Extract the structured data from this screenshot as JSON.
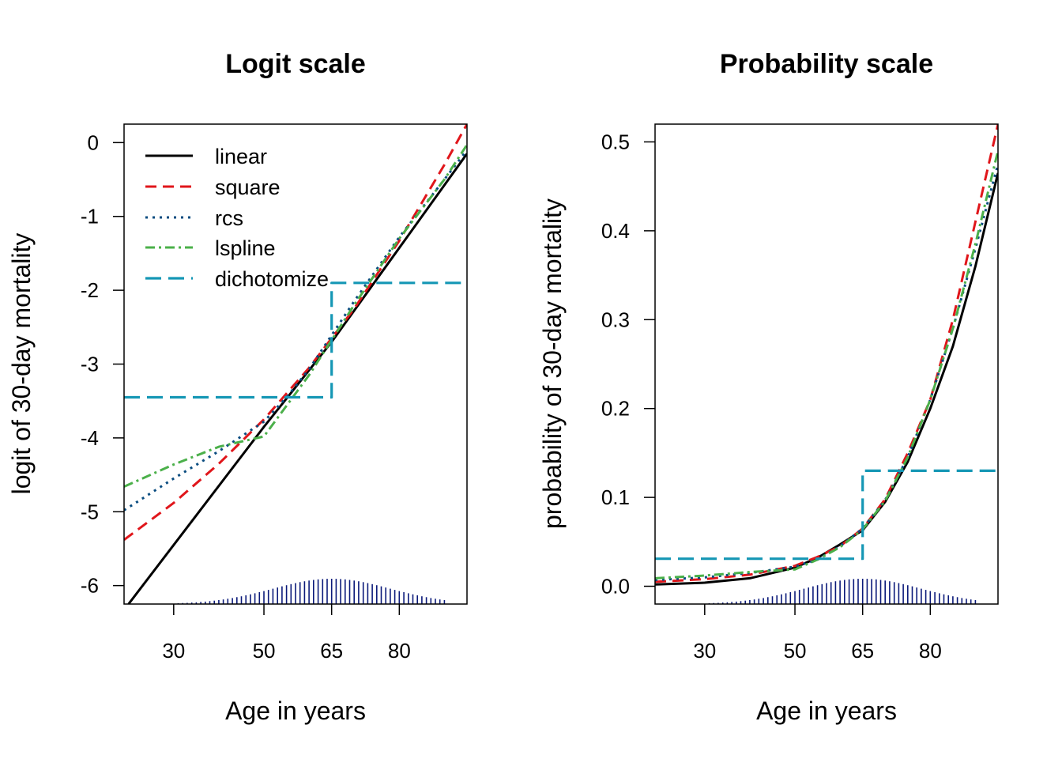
{
  "colors": {
    "linear": "#000000",
    "square": "#e0161b",
    "rcs": "#0a4c80",
    "lspline": "#4bb04a",
    "dichotomize": "#1597b5",
    "rug": "#0b1a7a"
  },
  "chart_data": [
    {
      "type": "line",
      "title": "Logit scale",
      "xlabel": "Age in years",
      "ylabel": "logit of 30-day mortality",
      "xlim": [
        19,
        95
      ],
      "ylim": [
        -6.25,
        0.25
      ],
      "x_ticks": [
        30,
        50,
        65,
        80
      ],
      "y_ticks": [
        0,
        -1,
        -2,
        -3,
        -4,
        -5,
        -6
      ],
      "legend_position": "top-left",
      "series": [
        {
          "name": "linear",
          "x": [
            20,
            50,
            65,
            95
          ],
          "y": [
            -6.25,
            -3.85,
            -2.7,
            -0.15
          ]
        },
        {
          "name": "square",
          "x": [
            19,
            30,
            40,
            50,
            60,
            70,
            80,
            90,
            95
          ],
          "y": [
            -5.38,
            -4.88,
            -4.35,
            -3.75,
            -3.05,
            -2.25,
            -1.33,
            -0.3,
            0.25
          ]
        },
        {
          "name": "rcs",
          "x": [
            19,
            30,
            40,
            50,
            55,
            60,
            70,
            80,
            90,
            95
          ],
          "y": [
            -4.98,
            -4.55,
            -4.18,
            -3.78,
            -3.45,
            -3.07,
            -2.15,
            -1.28,
            -0.5,
            -0.1
          ]
        },
        {
          "name": "lspline",
          "x": [
            19,
            30,
            40,
            50,
            60,
            70,
            80,
            90,
            95
          ],
          "y": [
            -4.66,
            -4.36,
            -4.12,
            -3.98,
            -3.15,
            -2.2,
            -1.3,
            -0.5,
            -0.03
          ]
        },
        {
          "name": "dichotomize",
          "x": [
            19,
            65,
            65,
            95
          ],
          "y": [
            -3.45,
            -3.45,
            -1.9,
            -1.9
          ]
        }
      ],
      "rug": {
        "x_min": 23,
        "x_max": 90,
        "center": 65,
        "spread": 13
      }
    },
    {
      "type": "line",
      "title": "Probability scale",
      "xlabel": "Age in years",
      "ylabel": "probability of 30-day mortality",
      "xlim": [
        19,
        95
      ],
      "ylim": [
        -0.02,
        0.52
      ],
      "x_ticks": [
        30,
        50,
        65,
        80
      ],
      "y_ticks": [
        0.0,
        0.1,
        0.2,
        0.3,
        0.4,
        0.5
      ],
      "y_tick_labels": [
        "0.0",
        "0.1",
        "0.2",
        "0.3",
        "0.4",
        "0.5"
      ],
      "series": [
        {
          "name": "linear",
          "x": [
            19,
            30,
            40,
            50,
            55,
            60,
            65,
            70,
            75,
            80,
            85,
            90,
            95
          ],
          "y": [
            0.002,
            0.004,
            0.009,
            0.021,
            0.032,
            0.047,
            0.063,
            0.095,
            0.14,
            0.2,
            0.27,
            0.36,
            0.465
          ]
        },
        {
          "name": "square",
          "x": [
            19,
            30,
            40,
            50,
            55,
            60,
            65,
            70,
            75,
            80,
            85,
            90,
            95
          ],
          "y": [
            0.005,
            0.008,
            0.013,
            0.023,
            0.033,
            0.045,
            0.065,
            0.098,
            0.15,
            0.21,
            0.3,
            0.41,
            0.52
          ]
        },
        {
          "name": "rcs",
          "x": [
            19,
            30,
            40,
            50,
            55,
            60,
            65,
            70,
            75,
            80,
            85,
            90,
            95
          ],
          "y": [
            0.007,
            0.01,
            0.015,
            0.022,
            0.03,
            0.045,
            0.065,
            0.097,
            0.145,
            0.21,
            0.29,
            0.38,
            0.475
          ]
        },
        {
          "name": "lspline",
          "x": [
            19,
            30,
            40,
            50,
            55,
            60,
            65,
            70,
            75,
            80,
            85,
            90,
            95
          ],
          "y": [
            0.009,
            0.012,
            0.016,
            0.019,
            0.03,
            0.044,
            0.064,
            0.096,
            0.145,
            0.21,
            0.29,
            0.385,
            0.49
          ]
        },
        {
          "name": "dichotomize",
          "x": [
            19,
            65,
            65,
            95
          ],
          "y": [
            0.031,
            0.031,
            0.13,
            0.13
          ]
        }
      ],
      "rug": {
        "x_min": 23,
        "x_max": 90,
        "center": 65,
        "spread": 13
      }
    }
  ]
}
